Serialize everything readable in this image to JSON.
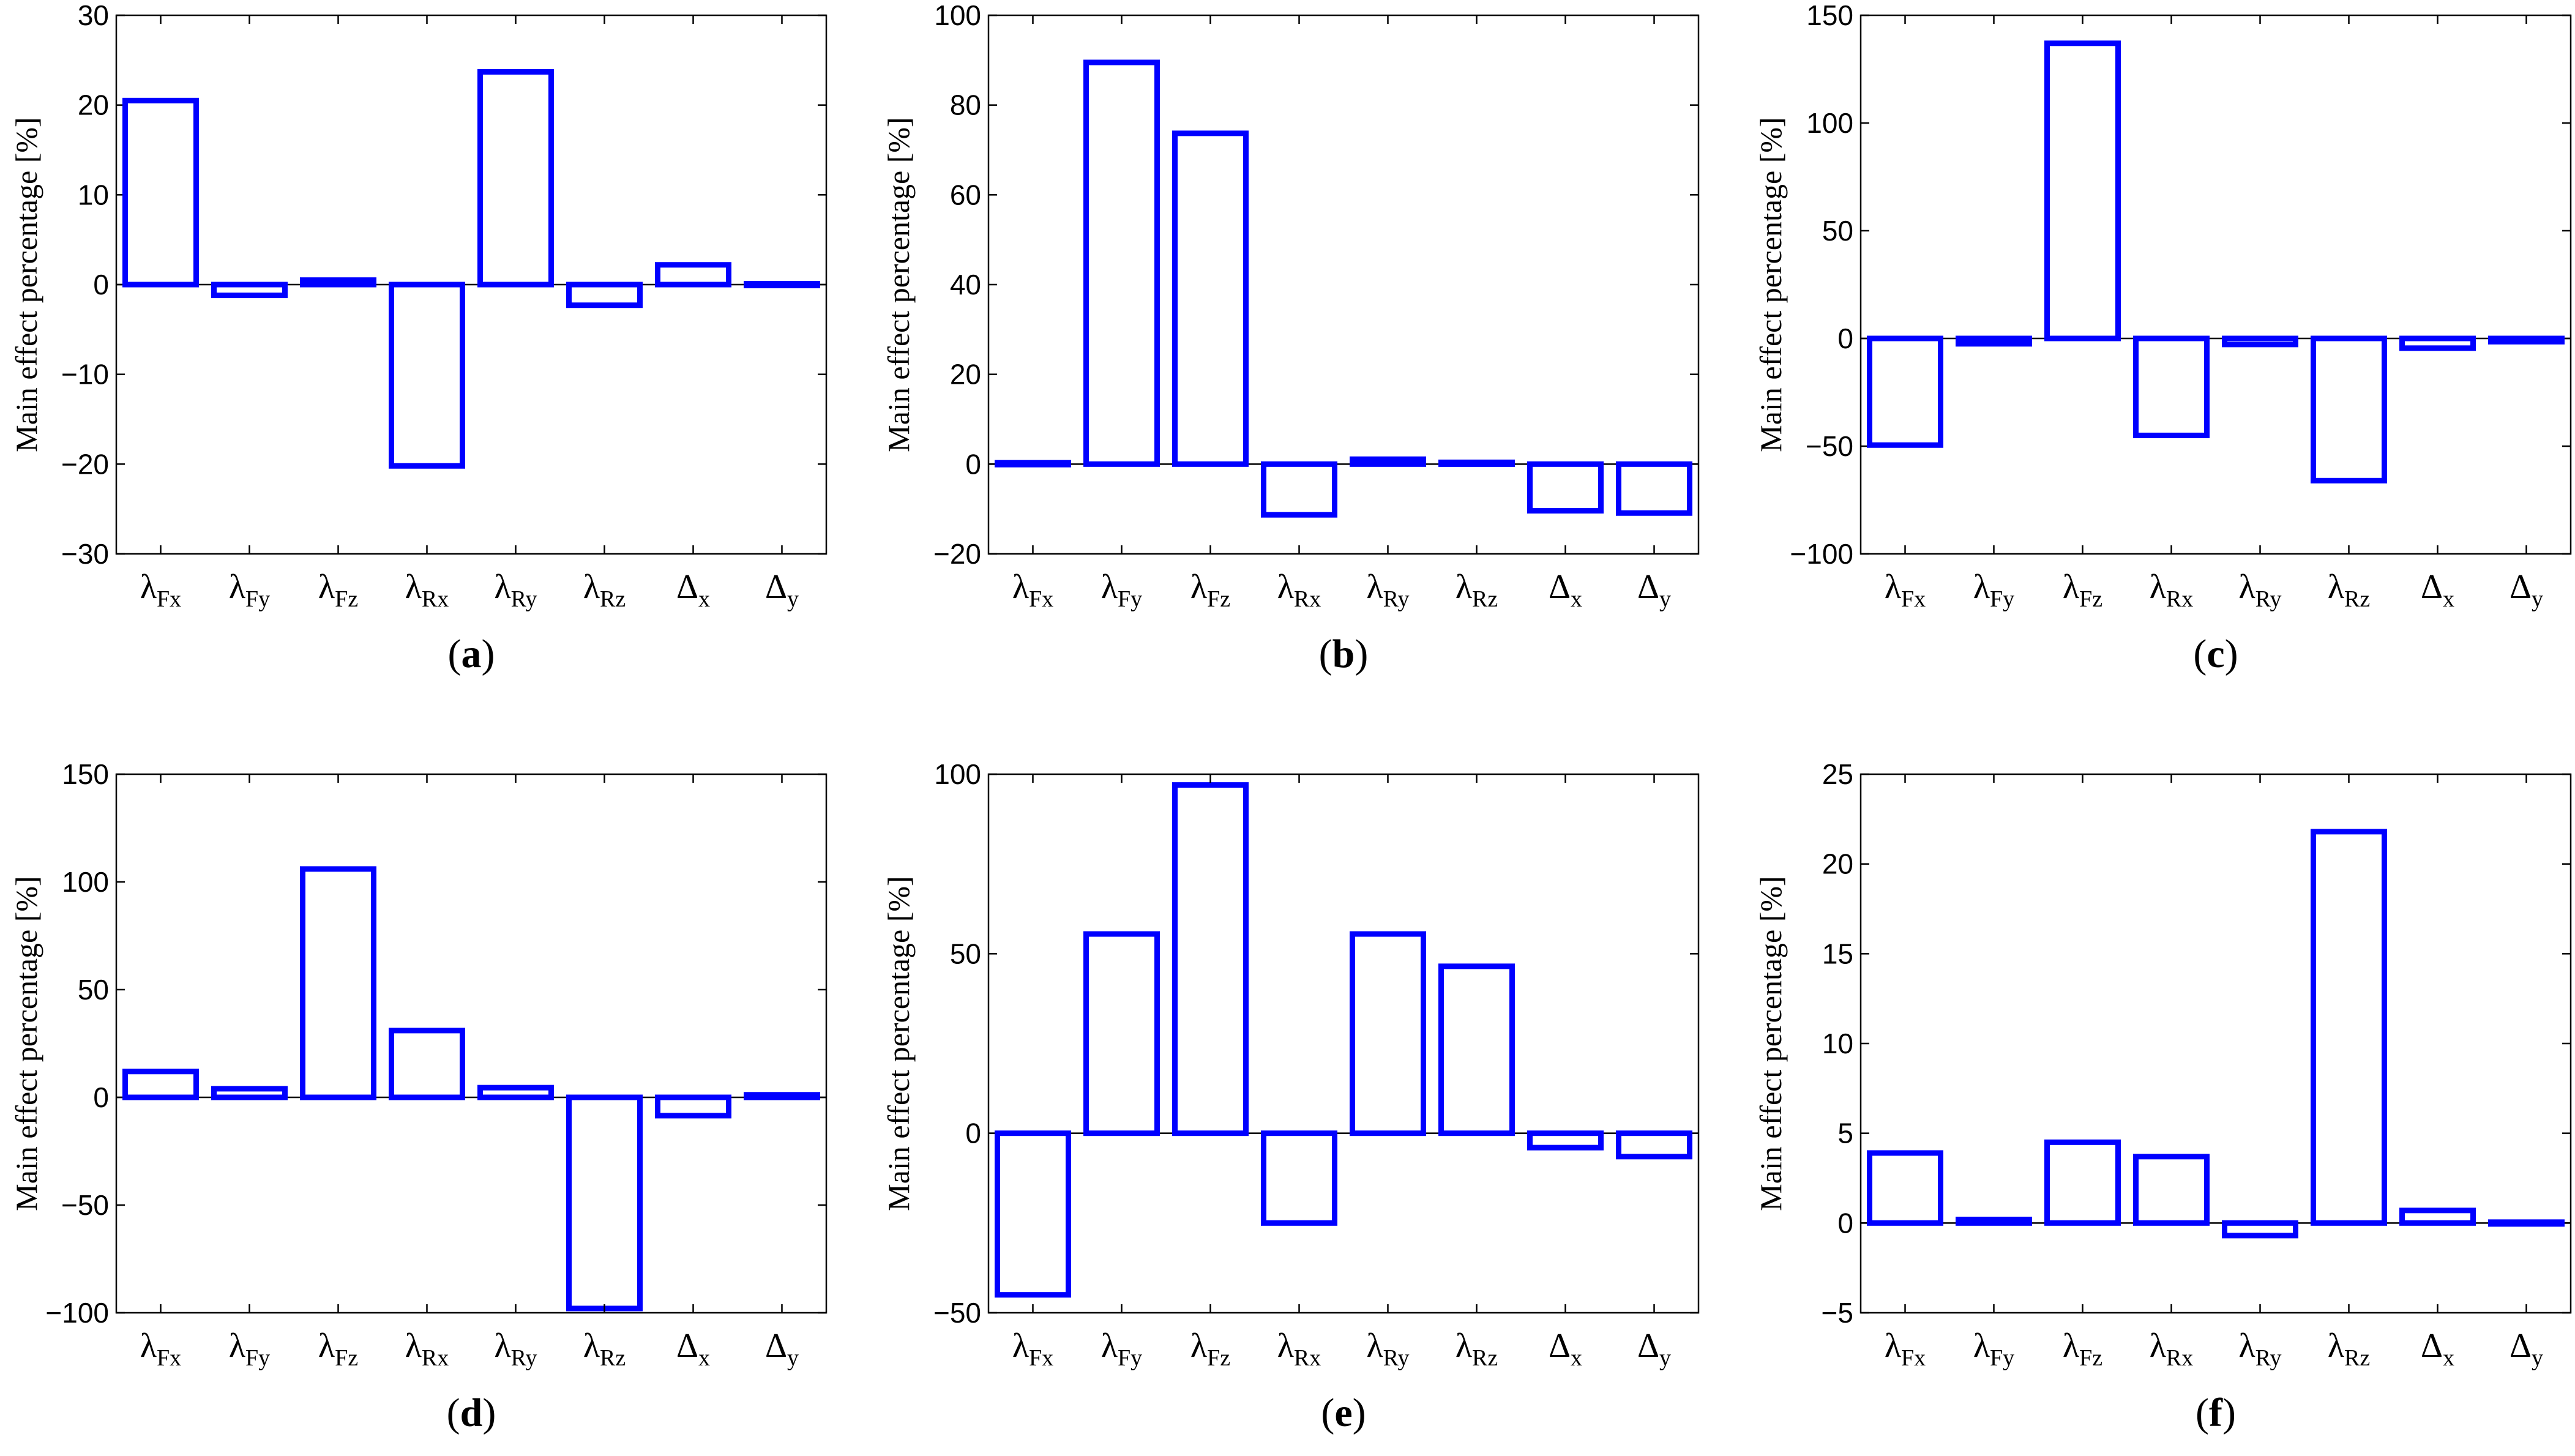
{
  "chart_data": [
    {
      "type": "bar",
      "caption": "a",
      "categories": [
        {
          "base": "λ",
          "sub": "Fx"
        },
        {
          "base": "λ",
          "sub": "Fy"
        },
        {
          "base": "λ",
          "sub": "Fz"
        },
        {
          "base": "λ",
          "sub": "Rx"
        },
        {
          "base": "λ",
          "sub": "Ry"
        },
        {
          "base": "λ",
          "sub": "Rz"
        },
        {
          "base": "Δ",
          "sub": "x"
        },
        {
          "base": "Δ",
          "sub": "y"
        }
      ],
      "values": [
        20.5,
        -1.2,
        0.5,
        -20.2,
        23.7,
        -2.3,
        2.2,
        0.1
      ],
      "ylabel": "Main effect percentage [%]",
      "ylim": [
        -30,
        30
      ],
      "yticks": [
        -30,
        -20,
        -10,
        0,
        10,
        20,
        30
      ],
      "ytick_labels": [
        "−30",
        "−20",
        "−10",
        "0",
        "10",
        "20",
        "30"
      ]
    },
    {
      "type": "bar",
      "caption": "b",
      "categories": [
        {
          "base": "λ",
          "sub": "Fx"
        },
        {
          "base": "λ",
          "sub": "Fy"
        },
        {
          "base": "λ",
          "sub": "Fz"
        },
        {
          "base": "λ",
          "sub": "Rx"
        },
        {
          "base": "λ",
          "sub": "Ry"
        },
        {
          "base": "λ",
          "sub": "Rz"
        },
        {
          "base": "Δ",
          "sub": "x"
        },
        {
          "base": "Δ",
          "sub": "y"
        }
      ],
      "values": [
        0.3,
        89.5,
        73.7,
        -11.3,
        1.1,
        0.4,
        -10.4,
        -10.9
      ],
      "ylabel": "Main effect percentage [%]",
      "ylim": [
        -20,
        100
      ],
      "yticks": [
        -20,
        0,
        20,
        40,
        60,
        80,
        100
      ],
      "ytick_labels": [
        "−20",
        "0",
        "20",
        "40",
        "60",
        "80",
        "100"
      ]
    },
    {
      "type": "bar",
      "caption": "c",
      "categories": [
        {
          "base": "λ",
          "sub": "Fx"
        },
        {
          "base": "λ",
          "sub": "Fy"
        },
        {
          "base": "λ",
          "sub": "Fz"
        },
        {
          "base": "λ",
          "sub": "Rx"
        },
        {
          "base": "λ",
          "sub": "Ry"
        },
        {
          "base": "λ",
          "sub": "Rz"
        },
        {
          "base": "Δ",
          "sub": "x"
        },
        {
          "base": "Δ",
          "sub": "y"
        }
      ],
      "values": [
        -49.5,
        -2.5,
        137,
        -45,
        -2.8,
        -66,
        -4.5,
        -1.5
      ],
      "ylabel": "Main effect percentage [%]",
      "ylim": [
        -100,
        150
      ],
      "yticks": [
        -100,
        -50,
        0,
        50,
        100,
        150
      ],
      "ytick_labels": [
        "−100",
        "−50",
        "0",
        "50",
        "100",
        "150"
      ]
    },
    {
      "type": "bar",
      "caption": "d",
      "categories": [
        {
          "base": "λ",
          "sub": "Fx"
        },
        {
          "base": "λ",
          "sub": "Fy"
        },
        {
          "base": "λ",
          "sub": "Fz"
        },
        {
          "base": "λ",
          "sub": "Rx"
        },
        {
          "base": "λ",
          "sub": "Ry"
        },
        {
          "base": "λ",
          "sub": "Rz"
        },
        {
          "base": "Δ",
          "sub": "x"
        },
        {
          "base": "Δ",
          "sub": "y"
        }
      ],
      "values": [
        12,
        4,
        106,
        31,
        4.5,
        -98,
        -8.5,
        1.2
      ],
      "ylabel": "Main effect percentage [%]",
      "ylim": [
        -100,
        150
      ],
      "yticks": [
        -100,
        -50,
        0,
        50,
        100,
        150
      ],
      "ytick_labels": [
        "−100",
        "−50",
        "0",
        "50",
        "100",
        "150"
      ]
    },
    {
      "type": "bar",
      "caption": "e",
      "categories": [
        {
          "base": "λ",
          "sub": "Fx"
        },
        {
          "base": "λ",
          "sub": "Fy"
        },
        {
          "base": "λ",
          "sub": "Fz"
        },
        {
          "base": "λ",
          "sub": "Rx"
        },
        {
          "base": "λ",
          "sub": "Ry"
        },
        {
          "base": "λ",
          "sub": "Rz"
        },
        {
          "base": "Δ",
          "sub": "x"
        },
        {
          "base": "Δ",
          "sub": "y"
        }
      ],
      "values": [
        -45,
        55.5,
        97,
        -25,
        55.5,
        46.5,
        -4,
        -6.5
      ],
      "ylabel": "Main effect percentage [%]",
      "ylim": [
        -50,
        100
      ],
      "yticks": [
        -50,
        0,
        50,
        100
      ],
      "ytick_labels": [
        "−50",
        "0",
        "50",
        "100"
      ]
    },
    {
      "type": "bar",
      "caption": "f",
      "categories": [
        {
          "base": "λ",
          "sub": "Fx"
        },
        {
          "base": "λ",
          "sub": "Fy"
        },
        {
          "base": "λ",
          "sub": "Fz"
        },
        {
          "base": "λ",
          "sub": "Rx"
        },
        {
          "base": "λ",
          "sub": "Ry"
        },
        {
          "base": "λ",
          "sub": "Rz"
        },
        {
          "base": "Δ",
          "sub": "x"
        },
        {
          "base": "Δ",
          "sub": "y"
        }
      ],
      "values": [
        3.9,
        0.2,
        4.5,
        3.7,
        -0.7,
        21.8,
        0.7,
        0.05
      ],
      "ylabel": "Main effect percentage [%]",
      "ylim": [
        -5,
        25
      ],
      "yticks": [
        -5,
        0,
        5,
        10,
        15,
        20,
        25
      ],
      "ytick_labels": [
        "−5",
        "0",
        "5",
        "10",
        "15",
        "20",
        "25"
      ]
    }
  ]
}
